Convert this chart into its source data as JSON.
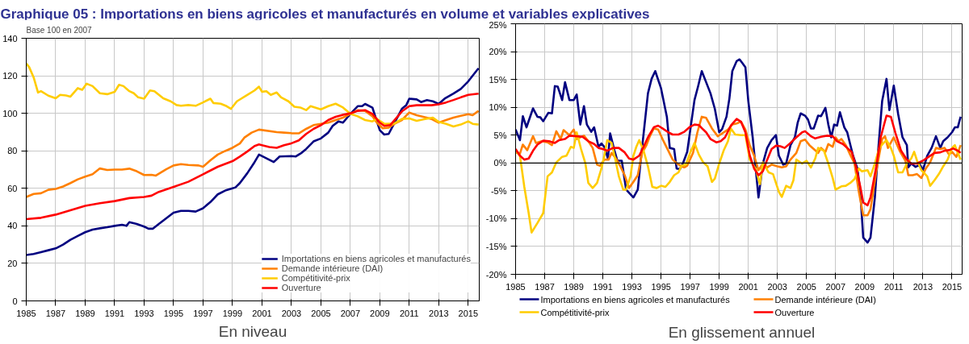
{
  "chart_data": [
    {
      "type": "line",
      "title": "Graphique 05 : Importations en biens agricoles et manufacturés en volume et variables explicatives",
      "xlabel": "En niveau",
      "ylabel": "Base 100 en 2007",
      "xlim": [
        1985,
        2015.75
      ],
      "ylim": [
        0,
        140
      ],
      "xticks": [
        1985,
        1987,
        1989,
        1991,
        1993,
        1995,
        1997,
        1999,
        2001,
        2003,
        2005,
        2007,
        2009,
        2011,
        2013,
        2015
      ],
      "yticks": [
        0,
        20,
        40,
        60,
        80,
        100,
        120,
        140
      ],
      "grid": true,
      "legend": "bottom right",
      "series": [
        {
          "name": "Importations en biens agricoles et manufacturés",
          "color": "#000080",
          "x": [
            1985,
            1985.5,
            1986,
            1986.5,
            1987,
            1987.5,
            1988,
            1988.5,
            1989,
            1989.5,
            1990,
            1990.5,
            1991,
            1991.5,
            1991.8,
            1992,
            1992.5,
            1993,
            1993.3,
            1993.6,
            1994,
            1994.5,
            1995,
            1995.5,
            1996,
            1996.5,
            1997,
            1997.5,
            1998,
            1998.5,
            1999,
            1999.2,
            1999.5,
            2000,
            2000.5,
            2000.8,
            2001.8,
            2002.2,
            2003,
            2003.3,
            2003.7,
            2004,
            2004.5,
            2005,
            2005.5,
            2005.8,
            2006.2,
            2006.5,
            2007,
            2007.5,
            2007.8,
            2008,
            2008.5,
            2008.8,
            2009,
            2009.3,
            2009.6,
            2010,
            2010.5,
            2010.8,
            2011,
            2011.5,
            2011.8,
            2012.2,
            2012.6,
            2013,
            2013.4,
            2014,
            2014.5,
            2015,
            2015.3,
            2015.7
          ],
          "values": [
            24.5,
            25,
            26,
            27,
            28,
            30,
            32.6,
            34.6,
            36.6,
            38,
            38.7,
            39.3,
            40,
            40.6,
            40,
            42,
            41,
            39.6,
            38.5,
            38.5,
            41,
            44,
            47,
            48,
            48,
            47.6,
            49.4,
            52.7,
            56.8,
            58.8,
            60,
            60.5,
            62.8,
            68,
            74,
            78,
            74,
            77,
            77.2,
            77,
            79,
            81,
            85,
            86.6,
            89.7,
            93.3,
            95.7,
            95,
            99.7,
            103.8,
            103.8,
            105,
            103,
            95.7,
            91,
            88.7,
            89,
            95,
            102.4,
            104.4,
            107.8,
            107.4,
            106,
            107,
            106.4,
            105,
            107.8,
            110.5,
            113,
            117,
            120,
            124
          ]
        },
        {
          "name": "Demande intérieure (DAI)",
          "color": "#ff8000",
          "x": [
            1985,
            1985.5,
            1986,
            1986.5,
            1987,
            1987.5,
            1988,
            1988.5,
            1989,
            1989.5,
            1990,
            1990.5,
            1991,
            1991.5,
            1992,
            1992.5,
            1993,
            1993.5,
            1993.8,
            1994.5,
            1995,
            1995.5,
            1996,
            1996.7,
            1997,
            1997.5,
            1998,
            1998.5,
            1999,
            1999.5,
            1999.8,
            2000.3,
            2000.8,
            2002,
            2002.5,
            2003,
            2003.5,
            2004,
            2004.5,
            2005,
            2005.5,
            2006,
            2006.5,
            2007,
            2007.5,
            2008,
            2008.5,
            2008.8,
            2009.2,
            2009.6,
            2010,
            2010.5,
            2011,
            2011.5,
            2012,
            2012.5,
            2013,
            2013.5,
            2014,
            2014.5,
            2015,
            2015.3,
            2015.7
          ],
          "values": [
            55.4,
            57,
            57.4,
            59.2,
            59.7,
            61,
            62.8,
            64.8,
            66.2,
            67.5,
            70.6,
            69.8,
            70,
            70,
            70.5,
            69.1,
            67.1,
            67.2,
            66.8,
            70.2,
            72.2,
            72.9,
            72.5,
            72.2,
            71.5,
            74.9,
            78,
            79.9,
            81.6,
            83.9,
            87,
            89.7,
            91.3,
            90,
            89.7,
            89.4,
            89.3,
            91.7,
            93.7,
            94.4,
            95,
            96.4,
            97.7,
            99.7,
            101.6,
            101.3,
            98.4,
            95,
            92,
            92.4,
            94.4,
            96.4,
            100.4,
            99,
            98,
            97,
            95,
            96.4,
            97.7,
            98.7,
            99.5,
            99,
            101.3
          ]
        },
        {
          "name": "Compétitivité-prix",
          "color": "#ffcc00",
          "x": [
            1985,
            1985.2,
            1985.5,
            1985.8,
            1986,
            1986.5,
            1987,
            1987.3,
            1987.7,
            1988,
            1988.5,
            1988.8,
            1989.1,
            1989.5,
            1990,
            1990.5,
            1991,
            1991.3,
            1991.6,
            1992,
            1992.3,
            1992.6,
            1993,
            1993.4,
            1993.7,
            1994.3,
            1994.8,
            1995.2,
            1995.5,
            1996,
            1996.5,
            1997,
            1997.5,
            1997.7,
            1998.2,
            1998.6,
            1998.9,
            1999.3,
            2000,
            2000.5,
            2000.8,
            2001,
            2001.3,
            2001.6,
            2002,
            2002.3,
            2002.8,
            2003.2,
            2003.6,
            2004,
            2004.3,
            2005,
            2005.5,
            2006,
            2006.5,
            2007,
            2007.5,
            2008,
            2008.5,
            2008.8,
            2009.3,
            2010,
            2010.5,
            2011,
            2011.5,
            2012,
            2012.6,
            2013,
            2013.5,
            2014,
            2014.5,
            2015,
            2015.3,
            2015.7
          ],
          "values": [
            126.6,
            124.6,
            119.2,
            111.1,
            111.8,
            109.4,
            108,
            109.8,
            109.5,
            108.9,
            113.4,
            112.5,
            115.8,
            114.5,
            110.7,
            110.2,
            111.4,
            115.2,
            114.5,
            111.8,
            110.7,
            108.5,
            107.8,
            112.2,
            111.8,
            108,
            106.4,
            104.4,
            104,
            104.4,
            104,
            105.8,
            107.8,
            105.5,
            105.1,
            103.8,
            102.4,
            106.4,
            109.8,
            112.2,
            114.2,
            111.5,
            111.8,
            109.8,
            111.1,
            108.5,
            106.4,
            103.5,
            103.1,
            101.7,
            103.8,
            102.1,
            103.8,
            105.1,
            103.1,
            99.7,
            98.4,
            96.4,
            95.7,
            97,
            94.4,
            94.6,
            97,
            97.3,
            96,
            96.8,
            97.7,
            95.4,
            94.4,
            93,
            94,
            95.7,
            94.4,
            94
          ]
        },
        {
          "name": "Ouverture",
          "color": "#ff0000",
          "x": [
            1985,
            1986,
            1987,
            1988,
            1989,
            1990,
            1991,
            1992,
            1993,
            1993.5,
            1994,
            1995,
            1996,
            1997,
            1998,
            1999,
            1999.5,
            2000,
            2000.5,
            2000.8,
            2001,
            2001.5,
            2002,
            2002.5,
            2003,
            2003.5,
            2004,
            2004.5,
            2005,
            2005.5,
            2006,
            2006.5,
            2007,
            2007.5,
            2008,
            2008.5,
            2009,
            2009.3,
            2009.7,
            2010,
            2010.5,
            2011,
            2011.5,
            2012,
            2012.5,
            2013,
            2013.5,
            2014,
            2014.5,
            2015,
            2015.7
          ],
          "values": [
            43.6,
            44.3,
            46,
            48.3,
            50.7,
            52.1,
            53.2,
            54.8,
            55.4,
            56.1,
            58.1,
            60.8,
            63.5,
            67.5,
            71.5,
            74.5,
            76.9,
            79.6,
            82.6,
            83.4,
            83,
            82,
            81.6,
            83,
            84,
            85.6,
            89,
            91.7,
            93.7,
            96.4,
            98.1,
            99.2,
            100,
            101.3,
            101.7,
            99.7,
            95,
            93.3,
            93.7,
            96.4,
            101,
            103.8,
            104.3,
            104.3,
            104.3,
            104.8,
            105.8,
            107.1,
            108.5,
            109.8,
            110.5
          ]
        }
      ]
    },
    {
      "type": "line",
      "xlabel": "En glissement annuel",
      "xlim": [
        1985,
        2015.7
      ],
      "ylim": [
        -20,
        25
      ],
      "xticks": [
        1985,
        1987,
        1989,
        1991,
        1993,
        1995,
        1997,
        1999,
        2001,
        2003,
        2005,
        2007,
        2009,
        2011,
        2013,
        2015
      ],
      "yticks": [
        {
          "value": -20,
          "label": "-20%"
        },
        {
          "value": -15,
          "label": "-15%"
        },
        {
          "value": -10,
          "label": "-10%"
        },
        {
          "value": -5,
          "label": "-5%"
        },
        {
          "value": 0,
          "label": "0%"
        },
        {
          "value": 5,
          "label": "5%"
        },
        {
          "value": 10,
          "label": "10%"
        },
        {
          "value": 15,
          "label": "15%"
        },
        {
          "value": 20,
          "label": "20%"
        },
        {
          "value": 25,
          "label": "25%"
        }
      ],
      "grid": true,
      "legend": "bottom",
      "ref_lines": [
        {
          "axis": "y",
          "value": 0,
          "color": "#000000"
        }
      ],
      "series": [
        {
          "name": "Importations en biens agricoles et manufacturés",
          "color": "#000080",
          "x": [
            1985,
            1985.3,
            1985.5,
            1985.75,
            1986.2,
            1986.5,
            1986.7,
            1986.9,
            1987.25,
            1987.5,
            1987.7,
            1987.9,
            1988.2,
            1988.4,
            1988.7,
            1989.0,
            1989.2,
            1989.45,
            1989.7,
            1989.9,
            1990.2,
            1990.4,
            1990.7,
            1990.9,
            1991.1,
            1991.35,
            1991.5,
            1991.8,
            1992.0,
            1992.3,
            1992.6,
            1993.1,
            1993.4,
            1993.6,
            1994.1,
            1994.35,
            1994.6,
            1995.0,
            1995.4,
            1995.6,
            1995.9,
            1996.07,
            1996.3,
            1996.5,
            1996.8,
            1997.06,
            1997.3,
            1997.56,
            1997.8,
            1998.4,
            1998.7,
            1999,
            1999.2,
            1999.5,
            1999.7,
            1999.9,
            2000.2,
            2000.4,
            2000.6,
            2000.8,
            2001,
            2001.3,
            2001.7,
            2002,
            2002.3,
            2002.6,
            2002.9,
            2003.1,
            2003.4,
            2003.6,
            2003.9,
            2004.2,
            2004.4,
            2004.6,
            2004.9,
            2005.1,
            2005.3,
            2005.5,
            2005.8,
            2006.0,
            2006.3,
            2006.5,
            2006.7,
            2006.9,
            2007.1,
            2007.3,
            2007.6,
            2007.8,
            2008.2,
            2008.5,
            2008.7,
            2008.9,
            2009.2,
            2009.4,
            2009.7,
            2009.9,
            2010.2,
            2010.5,
            2010.7,
            2011,
            2011.3,
            2011.6,
            2011.9,
            2012.0,
            2012.2,
            2012.5,
            2012.8,
            2013.0,
            2013.3,
            2013.6,
            2013.9,
            2014.2,
            2014.4,
            2014.7,
            2015.0,
            2015.2,
            2015.4,
            2015.6
          ],
          "values": [
            6,
            4.1,
            8.4,
            6.4,
            9.8,
            8.3,
            8.2,
            7.5,
            9,
            8.9,
            13.8,
            13.7,
            11.3,
            14.5,
            11.3,
            11.3,
            12.3,
            6.9,
            10.2,
            6.9,
            5.6,
            6.4,
            2.9,
            3.5,
            2.9,
            0.8,
            5.3,
            2.2,
            0.4,
            0.4,
            -4.8,
            -6.2,
            -4.8,
            0.4,
            12.5,
            15.1,
            16.5,
            13.4,
            8.3,
            2.7,
            2.5,
            -1,
            -1.1,
            -0.1,
            2,
            6.9,
            11.3,
            13.9,
            16.5,
            12.5,
            9.7,
            5.5,
            6.1,
            8.3,
            11.6,
            16.5,
            18.3,
            18.6,
            17.9,
            17.2,
            11.1,
            4.6,
            -6.2,
            -0.1,
            2.7,
            4.1,
            5,
            1.3,
            -0.3,
            -0.1,
            3.2,
            4.6,
            7.3,
            8.9,
            8.5,
            7.8,
            6.2,
            6.2,
            8.5,
            8.4,
            9.9,
            6.9,
            4.6,
            6.9,
            6.7,
            9.1,
            6.4,
            5.5,
            1.3,
            -1,
            -5.2,
            -13.4,
            -14.3,
            -13.4,
            -6.2,
            1.3,
            11.1,
            15.1,
            9.5,
            13.9,
            8.8,
            4.6,
            3.2,
            -0.8,
            -0.1,
            -0.7,
            -0.3,
            -1.3,
            1.3,
            2.7,
            4.8,
            2.7,
            3.9,
            4.6,
            5.5,
            6.4,
            6.4,
            8.3
          ]
        },
        {
          "name": "Demande intérieure (DAI)",
          "color": "#ff8000",
          "x": [
            1985,
            1985.3,
            1985.5,
            1985.8,
            1986.2,
            1986.4,
            1986.8,
            1987.2,
            1987.5,
            1987.8,
            1988.1,
            1988.3,
            1988.7,
            1989,
            1989.2,
            1989.7,
            1990,
            1990.3,
            1990.6,
            1990.8,
            1991.1,
            1991.4,
            1991.6,
            1991.9,
            1992.2,
            1992.5,
            1992.8,
            1993.1,
            1993.4,
            1993.7,
            1994.0,
            1994.2,
            1994.5,
            1994.8,
            1995.1,
            1995.5,
            1995.8,
            1996.1,
            1996.4,
            1996.6,
            1996.8,
            1997.2,
            1997.5,
            1997.8,
            1998.1,
            1998.5,
            1998.9,
            1999.2,
            1999.6,
            1999.9,
            2000.2,
            2000.5,
            2000.8,
            2001.1,
            2001.4,
            2001.7,
            2002.0,
            2002.3,
            2002.6,
            2003.0,
            2003.3,
            2003.6,
            2003.9,
            2004.3,
            2004.6,
            2004.9,
            2005.2,
            2005.5,
            2005.8,
            2006.0,
            2006.3,
            2006.5,
            2006.8,
            2007.0,
            2007.2,
            2007.4,
            2007.7,
            2008.0,
            2008.3,
            2008.6,
            2008.9,
            2009.2,
            2009.4,
            2009.8,
            2010.2,
            2010.4,
            2010.6,
            2011.0,
            2011.4,
            2011.8,
            2012.0,
            2012.3,
            2012.6,
            2012.9,
            2013.2,
            2013.5,
            2013.9,
            2014.2,
            2014.5,
            2014.8,
            2015.0,
            2015.3,
            2015.6
          ],
          "values": [
            1.9,
            1.7,
            3.3,
            2.3,
            4.8,
            3.6,
            3.9,
            3.7,
            3.2,
            5.7,
            4.3,
            5.9,
            5,
            6,
            4.3,
            4.9,
            3.9,
            2.7,
            -0.3,
            -0.5,
            0.6,
            0.6,
            1.8,
            0.8,
            -0.6,
            -2.2,
            -4.5,
            -3.4,
            -2.2,
            1.8,
            3.2,
            4.6,
            6.2,
            6,
            4.3,
            2.2,
            0.6,
            -0.1,
            -0.6,
            -0.8,
            -0.5,
            1.8,
            5.5,
            8.3,
            8.1,
            6.2,
            4.8,
            5.3,
            6,
            6.9,
            7.1,
            7.4,
            6,
            3.2,
            1.3,
            -1.3,
            -0.1,
            -0.8,
            -0.3,
            -0.6,
            -0.8,
            -0.6,
            0.6,
            1.8,
            3.9,
            4.2,
            3.2,
            2.5,
            1.8,
            2.7,
            2,
            3.4,
            2.9,
            4.6,
            3.9,
            4.3,
            3.2,
            1.5,
            -0.1,
            -5.2,
            -9.4,
            -9.4,
            -8.3,
            -1.5,
            4.3,
            4.8,
            2.7,
            4.6,
            2.2,
            0.4,
            -2.2,
            -2.2,
            -2,
            -2.7,
            -1,
            0.1,
            2.7,
            2.5,
            2.7,
            1.5,
            2,
            1.1,
            3.2
          ]
        },
        {
          "name": "Compétitivité-prix",
          "color": "#ffcc00",
          "x": [
            1985,
            1985.3,
            1985.6,
            1985.9,
            1986.1,
            1986.5,
            1986.9,
            1987.2,
            1987.5,
            1987.8,
            1988.2,
            1988.5,
            1988.8,
            1989.0,
            1989.2,
            1989.5,
            1989.8,
            1990.0,
            1990.3,
            1990.6,
            1990.9,
            1991.1,
            1991.3,
            1991.6,
            1991.8,
            1992.1,
            1992.4,
            1992.6,
            1992.9,
            1993.1,
            1993.3,
            1993.5,
            1993.8,
            1994.1,
            1994.4,
            1994.7,
            1995.0,
            1995.3,
            1995.6,
            1995.9,
            1996.2,
            1996.4,
            1996.7,
            1997.0,
            1997.3,
            1997.6,
            1997.9,
            1998.2,
            1998.5,
            1998.7,
            1999.0,
            1999.3,
            1999.6,
            1999.8,
            2000.1,
            2000.5,
            2000.8,
            2001.1,
            2001.5,
            2001.8,
            2002.0,
            2002.4,
            2002.7,
            2003.1,
            2003.3,
            2003.6,
            2003.9,
            2004.1,
            2004.3,
            2004.7,
            2005.0,
            2005.3,
            2005.6,
            2005.8,
            2006.2,
            2006.5,
            2006.8,
            2007.0,
            2007.4,
            2007.7,
            2008.0,
            2008.3,
            2008.6,
            2008.8,
            2009.2,
            2009.4,
            2009.7,
            2010.0,
            2010.3,
            2010.5,
            2010.8,
            2011.0,
            2011.3,
            2011.6,
            2011.9,
            2012.2,
            2012.4,
            2012.6,
            2012.9,
            2013.3,
            2013.5,
            2013.8,
            2014.1,
            2014.4,
            2014.7,
            2015.0,
            2015.2,
            2015.4,
            2015.6
          ],
          "values": [
            2.2,
            1.3,
            -4.3,
            -9,
            -12.5,
            -10.8,
            -9,
            -2.4,
            -1.7,
            0.1,
            1.1,
            1.3,
            2.9,
            2.7,
            5.5,
            2.5,
            -0.1,
            -3.6,
            -4.5,
            -3.6,
            -1,
            1.3,
            4.1,
            3.6,
            1.3,
            -2.4,
            -4.8,
            -4.8,
            -2.4,
            1.3,
            2.9,
            4.1,
            2.2,
            -0.6,
            -4.3,
            -4.5,
            -4.1,
            -4.3,
            -3.4,
            -2.2,
            -1.7,
            -0.5,
            -0.3,
            1.8,
            3.6,
            1.5,
            0.1,
            -0.6,
            -3.4,
            -2.8,
            -0.1,
            2.2,
            3.9,
            6.2,
            5.1,
            5,
            5,
            0.6,
            -1,
            -3.8,
            0.1,
            -1.7,
            -2,
            -5.2,
            -6.1,
            -4.1,
            -4.5,
            -3.1,
            0.6,
            -0.1,
            0.4,
            -0.8,
            0.8,
            2.7,
            2.2,
            -0.1,
            -2.7,
            -4.8,
            -4.2,
            -4.1,
            -3.6,
            -2.9,
            -1,
            -1.5,
            -1.3,
            -2.4,
            -0.1,
            2.7,
            3.6,
            4.1,
            2.7,
            1.3,
            -1.7,
            -1.7,
            -0.1,
            0.8,
            2,
            0.4,
            -1.3,
            -2.4,
            -4.1,
            -3.1,
            -2,
            -0.6,
            0.6,
            2.7,
            3.2,
            1.8,
            0.6
          ]
        },
        {
          "name": "Ouverture",
          "color": "#ff0000",
          "x": [
            1985,
            1985.3,
            1985.6,
            1985.9,
            1986.2,
            1986.5,
            1986.9,
            1987.3,
            1987.7,
            1988.0,
            1988.4,
            1988.7,
            1989.2,
            1989.6,
            1990.0,
            1990.4,
            1990.7,
            1991.0,
            1991.3,
            1991.7,
            1992.1,
            1992.5,
            1992.8,
            1993.1,
            1993.5,
            1993.8,
            1994.1,
            1994.5,
            1994.8,
            1995.1,
            1995.5,
            1995.8,
            1996.2,
            1996.6,
            1997.0,
            1997.3,
            1997.6,
            1997.9,
            1998.1,
            1998.4,
            1998.8,
            1999.1,
            1999.4,
            1999.8,
            2000.2,
            2000.5,
            2000.8,
            2001.1,
            2001.4,
            2001.7,
            2002.0,
            2002.3,
            2002.6,
            2002.9,
            2003.2,
            2003.5,
            2003.9,
            2004.3,
            2004.7,
            2004.9,
            2005.3,
            2005.6,
            2006.0,
            2006.4,
            2006.8,
            2007.1,
            2007.5,
            2007.8,
            2008.1,
            2008.4,
            2008.7,
            2008.9,
            2009.2,
            2009.4,
            2009.8,
            2010.1,
            2010.5,
            2010.8,
            2011.1,
            2011.5,
            2011.9,
            2012.2,
            2012.6,
            2013.0,
            2013.4,
            2013.8,
            2014.2,
            2014.5,
            2014.8,
            2015.1,
            2015.4,
            2015.6
          ],
          "values": [
            2.5,
            1.3,
            0.6,
            0.8,
            2.2,
            3.3,
            4,
            3.9,
            3.6,
            4.1,
            4.3,
            4.9,
            4.8,
            4.7,
            3.9,
            3.4,
            2.7,
            2.5,
            2.2,
            2.7,
            2.7,
            1.9,
            0.8,
            0.6,
            1.3,
            2.9,
            4.6,
            6.4,
            6.7,
            6.2,
            5.5,
            5.1,
            5.1,
            5.6,
            6.5,
            6.9,
            6.8,
            6,
            5.5,
            4.3,
            3.7,
            3.9,
            4.6,
            6.7,
            7.9,
            7.4,
            5.5,
            1.3,
            -1,
            -2.2,
            -1.5,
            0.6,
            2.5,
            3.1,
            3,
            2.7,
            3.6,
            4.6,
            5.5,
            5.7,
            4.8,
            4.4,
            4.7,
            4.9,
            4.8,
            3.9,
            3.4,
            2.7,
            2,
            -0.6,
            -4.3,
            -7.1,
            -7.6,
            -6.2,
            -0.6,
            4.6,
            8.5,
            8.3,
            5.5,
            2.2,
            0.6,
            -0.1,
            -0.1,
            0.4,
            1.1,
            1.8,
            1.9,
            2.2,
            2.3,
            2.6,
            2.2,
            1.8
          ]
        }
      ]
    }
  ]
}
